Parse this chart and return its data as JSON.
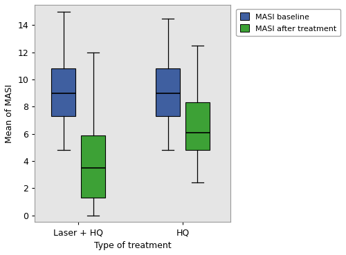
{
  "groups": [
    "Laser + HQ",
    "HQ"
  ],
  "boxes": {
    "Laser + HQ": {
      "baseline": {
        "whisker_low": 4.8,
        "q1": 7.3,
        "median": 9.0,
        "q3": 10.8,
        "whisker_high": 15.0
      },
      "after": {
        "whisker_low": 0.0,
        "q1": 1.3,
        "median": 3.5,
        "q3": 5.9,
        "whisker_high": 12.0
      }
    },
    "HQ": {
      "baseline": {
        "whisker_low": 4.8,
        "q1": 7.3,
        "median": 9.0,
        "q3": 10.8,
        "whisker_high": 14.5
      },
      "after": {
        "whisker_low": 2.4,
        "q1": 4.8,
        "median": 6.1,
        "q3": 8.3,
        "whisker_high": 12.5
      }
    }
  },
  "colors": {
    "baseline": "#3f5fa0",
    "after": "#3da136"
  },
  "ylabel": "Mean of MASI",
  "xlabel": "Type of treatment",
  "ylim": [
    -0.5,
    15.5
  ],
  "yticks": [
    0,
    2,
    4,
    6,
    8,
    10,
    12,
    14
  ],
  "legend_labels": [
    "MASI baseline",
    "MASI after treatment"
  ],
  "plot_bg_color": "#e5e5e5",
  "fig_bg_color": "#ffffff",
  "box_width": 0.28,
  "group_positions": [
    1.0,
    2.2
  ],
  "offsets": [
    -0.17,
    0.17
  ]
}
